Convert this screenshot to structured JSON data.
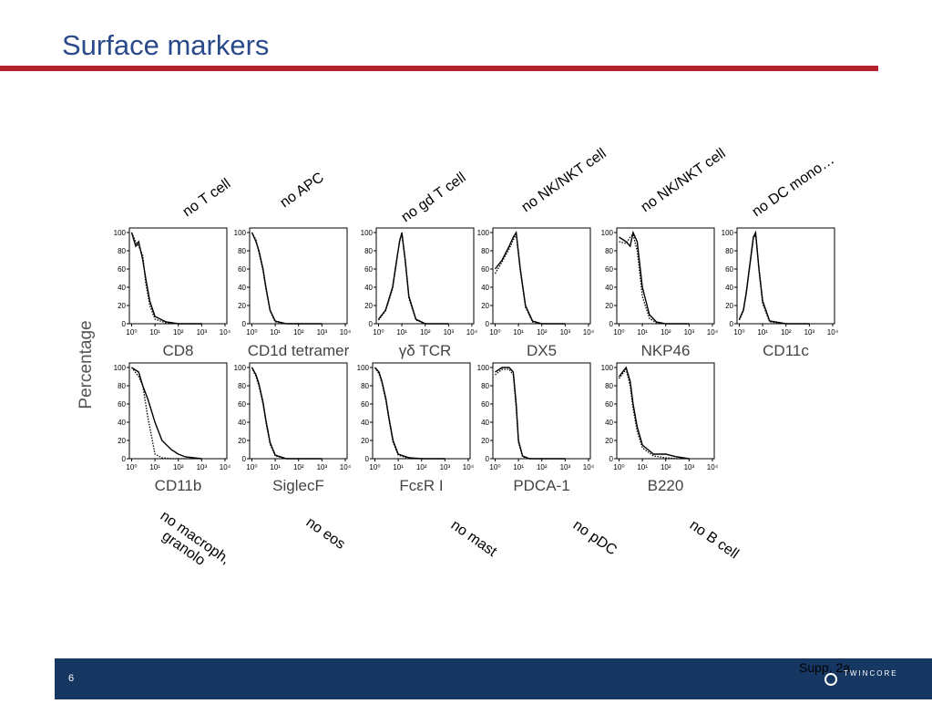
{
  "header": {
    "title": "Surface markers"
  },
  "annotations": {
    "top": [
      "no T cell",
      "no APC",
      "no gd T cell",
      "no NK/NKT cell",
      "no NK/NKT cell",
      "no DC mono…"
    ],
    "bottom": [
      [
        "no macroph,",
        "granolo"
      ],
      [
        "no eos"
      ],
      [
        "no mast"
      ],
      [
        "no pDC"
      ],
      [
        "no B cell"
      ]
    ]
  },
  "y_label": "Percentage",
  "footer": {
    "page": "6",
    "note": "Supp. 2a",
    "logo": "TWINCORE"
  },
  "chart_data": [
    {
      "type": "line",
      "xlabel": "CD8",
      "xscale": "log",
      "xlim": [
        0.8,
        12000
      ],
      "ylim": [
        0,
        105
      ],
      "yticks": [
        0,
        20,
        40,
        60,
        80,
        100
      ],
      "xticks": [
        {
          "value": 1,
          "label": "10⁰"
        },
        {
          "value": 10,
          "label": "10¹"
        },
        {
          "value": 100,
          "label": "10²"
        },
        {
          "value": 1000,
          "label": "10³"
        },
        {
          "value": 10000,
          "label": "10⁴"
        }
      ],
      "x": [
        1,
        1.5,
        2,
        3,
        4,
        6,
        10,
        30,
        100,
        1000
      ],
      "series": [
        {
          "color": "#000",
          "dash": false,
          "values": [
            100,
            85,
            90,
            70,
            50,
            25,
            8,
            2,
            0,
            0
          ]
        },
        {
          "color": "#000",
          "dash": true,
          "values": [
            100,
            90,
            85,
            75,
            45,
            20,
            5,
            1,
            0,
            0
          ]
        }
      ]
    },
    {
      "type": "line",
      "xlabel": "CD1d tetramer",
      "xscale": "log",
      "xlim": [
        0.8,
        12000
      ],
      "ylim": [
        0,
        105
      ],
      "yticks": [
        0,
        20,
        40,
        60,
        80,
        100
      ],
      "xticks": [
        {
          "value": 1,
          "label": "10⁰"
        },
        {
          "value": 10,
          "label": "10¹"
        },
        {
          "value": 100,
          "label": "10²"
        },
        {
          "value": 1000,
          "label": "10³"
        },
        {
          "value": 10000,
          "label": "10⁴"
        }
      ],
      "x": [
        1,
        1.5,
        2,
        3,
        4,
        6,
        10,
        30,
        100,
        1000
      ],
      "series": [
        {
          "color": "#000",
          "dash": false,
          "values": [
            100,
            90,
            80,
            60,
            40,
            15,
            3,
            0,
            0,
            0
          ]
        },
        {
          "color": "#000",
          "dash": true,
          "values": [
            100,
            92,
            78,
            58,
            38,
            14,
            2,
            0,
            0,
            0
          ]
        }
      ]
    },
    {
      "type": "line",
      "xlabel": "γδ TCR",
      "xscale": "log",
      "xlim": [
        0.8,
        12000
      ],
      "ylim": [
        0,
        105
      ],
      "yticks": [
        0,
        20,
        40,
        60,
        80,
        100
      ],
      "xticks": [
        {
          "value": 1,
          "label": "10⁰"
        },
        {
          "value": 10,
          "label": "10¹"
        },
        {
          "value": 100,
          "label": "10²"
        },
        {
          "value": 1000,
          "label": "10³"
        },
        {
          "value": 10000,
          "label": "10⁴"
        }
      ],
      "x": [
        1,
        2,
        4,
        6,
        8,
        10,
        14,
        20,
        40,
        100,
        1000
      ],
      "series": [
        {
          "color": "#000",
          "dash": false,
          "values": [
            5,
            15,
            40,
            70,
            90,
            100,
            70,
            30,
            5,
            0,
            0
          ]
        },
        {
          "color": "#000",
          "dash": true,
          "values": [
            4,
            14,
            38,
            68,
            92,
            98,
            68,
            28,
            4,
            0,
            0
          ]
        }
      ]
    },
    {
      "type": "line",
      "xlabel": "DX5",
      "xscale": "log",
      "xlim": [
        0.8,
        12000
      ],
      "ylim": [
        0,
        105
      ],
      "yticks": [
        0,
        20,
        40,
        60,
        80,
        100
      ],
      "xticks": [
        {
          "value": 1,
          "label": "10⁰"
        },
        {
          "value": 10,
          "label": "10¹"
        },
        {
          "value": 100,
          "label": "10²"
        },
        {
          "value": 1000,
          "label": "10³"
        },
        {
          "value": 10000,
          "label": "10⁴"
        }
      ],
      "x": [
        1,
        2,
        4,
        6,
        8,
        12,
        20,
        40,
        100,
        1000
      ],
      "series": [
        {
          "color": "#000",
          "dash": false,
          "values": [
            60,
            70,
            85,
            95,
            100,
            60,
            20,
            3,
            0,
            0
          ]
        },
        {
          "color": "#000",
          "dash": true,
          "values": [
            55,
            68,
            82,
            92,
            98,
            58,
            18,
            2,
            0,
            0
          ]
        }
      ]
    },
    {
      "type": "line",
      "xlabel": "NKP46",
      "xscale": "log",
      "xlim": [
        0.8,
        12000
      ],
      "ylim": [
        0,
        105
      ],
      "yticks": [
        0,
        20,
        40,
        60,
        80,
        100
      ],
      "xticks": [
        {
          "value": 1,
          "label": "10⁰"
        },
        {
          "value": 10,
          "label": "10¹"
        },
        {
          "value": 100,
          "label": "10²"
        },
        {
          "value": 1000,
          "label": "10³"
        },
        {
          "value": 10000,
          "label": "10⁴"
        }
      ],
      "x": [
        1,
        2,
        3,
        4,
        6,
        10,
        20,
        40,
        100,
        1000
      ],
      "series": [
        {
          "color": "#000",
          "dash": false,
          "values": [
            95,
            90,
            85,
            100,
            90,
            40,
            10,
            2,
            0,
            0
          ]
        },
        {
          "color": "#000",
          "dash": true,
          "values": [
            90,
            88,
            95,
            98,
            80,
            30,
            6,
            1,
            0,
            0
          ]
        }
      ]
    },
    {
      "type": "line",
      "xlabel": "CD11c",
      "xscale": "log",
      "xlim": [
        0.8,
        12000
      ],
      "ylim": [
        0,
        105
      ],
      "yticks": [
        0,
        20,
        40,
        60,
        80,
        100
      ],
      "xticks": [
        {
          "value": 1,
          "label": "10⁰"
        },
        {
          "value": 10,
          "label": "10¹"
        },
        {
          "value": 100,
          "label": "10²"
        },
        {
          "value": 1000,
          "label": "10³"
        },
        {
          "value": 10000,
          "label": "10⁴"
        }
      ],
      "x": [
        1,
        1.5,
        2,
        3,
        4,
        5,
        7,
        10,
        20,
        100,
        1000
      ],
      "series": [
        {
          "color": "#000",
          "dash": false,
          "values": [
            5,
            15,
            35,
            70,
            95,
            100,
            60,
            25,
            3,
            0,
            0
          ]
        },
        {
          "color": "#000",
          "dash": true,
          "values": [
            4,
            14,
            33,
            68,
            93,
            98,
            58,
            22,
            2,
            0,
            0
          ]
        }
      ]
    },
    {
      "type": "line",
      "xlabel": "CD11b",
      "xscale": "log",
      "xlim": [
        0.8,
        12000
      ],
      "ylim": [
        0,
        105
      ],
      "yticks": [
        0,
        20,
        40,
        60,
        80,
        100
      ],
      "xticks": [
        {
          "value": 1,
          "label": "10⁰"
        },
        {
          "value": 10,
          "label": "10¹"
        },
        {
          "value": 100,
          "label": "10²"
        },
        {
          "value": 1000,
          "label": "10³"
        },
        {
          "value": 10000,
          "label": "10⁴"
        }
      ],
      "x": [
        1,
        2,
        3,
        5,
        10,
        20,
        50,
        100,
        200,
        1000
      ],
      "series": [
        {
          "color": "#000",
          "dash": false,
          "values": [
            100,
            95,
            80,
            65,
            40,
            20,
            10,
            5,
            2,
            0
          ]
        },
        {
          "color": "#000",
          "dash": true,
          "values": [
            100,
            90,
            80,
            45,
            5,
            1,
            0,
            0,
            0,
            0
          ]
        }
      ]
    },
    {
      "type": "line",
      "xlabel": "SiglecF",
      "xscale": "log",
      "xlim": [
        0.8,
        12000
      ],
      "ylim": [
        0,
        105
      ],
      "yticks": [
        0,
        20,
        40,
        60,
        80,
        100
      ],
      "xticks": [
        {
          "value": 1,
          "label": "10⁰"
        },
        {
          "value": 10,
          "label": "10¹"
        },
        {
          "value": 100,
          "label": "10²"
        },
        {
          "value": 1000,
          "label": "10³"
        },
        {
          "value": 10000,
          "label": "10⁴"
        }
      ],
      "x": [
        1,
        1.5,
        2,
        3,
        4,
        6,
        10,
        30,
        100,
        1000
      ],
      "series": [
        {
          "color": "#000",
          "dash": false,
          "values": [
            100,
            92,
            82,
            62,
            42,
            18,
            4,
            0,
            0,
            0
          ]
        },
        {
          "color": "#000",
          "dash": true,
          "values": [
            100,
            90,
            80,
            60,
            40,
            16,
            3,
            0,
            0,
            0
          ]
        }
      ]
    },
    {
      "type": "line",
      "xlabel": "FcεR I",
      "xscale": "log",
      "xlim": [
        0.8,
        12000
      ],
      "ylim": [
        0,
        105
      ],
      "yticks": [
        0,
        20,
        40,
        60,
        80,
        100
      ],
      "xticks": [
        {
          "value": 1,
          "label": "10⁰"
        },
        {
          "value": 10,
          "label": "10¹"
        },
        {
          "value": 100,
          "label": "10²"
        },
        {
          "value": 1000,
          "label": "10³"
        },
        {
          "value": 10000,
          "label": "10⁴"
        }
      ],
      "x": [
        1,
        1.5,
        2,
        3,
        4,
        6,
        10,
        30,
        100,
        1000
      ],
      "series": [
        {
          "color": "#000",
          "dash": false,
          "values": [
            100,
            95,
            85,
            65,
            45,
            20,
            5,
            1,
            0,
            0
          ]
        },
        {
          "color": "#000",
          "dash": true,
          "values": [
            100,
            93,
            83,
            63,
            43,
            18,
            4,
            0,
            0,
            0
          ]
        }
      ]
    },
    {
      "type": "line",
      "xlabel": "PDCA-1",
      "xscale": "log",
      "xlim": [
        0.8,
        12000
      ],
      "ylim": [
        0,
        105
      ],
      "yticks": [
        0,
        20,
        40,
        60,
        80,
        100
      ],
      "xticks": [
        {
          "value": 1,
          "label": "10⁰"
        },
        {
          "value": 10,
          "label": "10¹"
        },
        {
          "value": 100,
          "label": "10²"
        },
        {
          "value": 1000,
          "label": "10³"
        },
        {
          "value": 10000,
          "label": "10⁴"
        }
      ],
      "x": [
        1,
        2,
        4,
        6,
        8,
        10,
        15,
        30,
        100,
        1000
      ],
      "series": [
        {
          "color": "#000",
          "dash": false,
          "values": [
            95,
            100,
            100,
            95,
            60,
            20,
            3,
            0,
            0,
            0
          ]
        },
        {
          "color": "#000",
          "dash": true,
          "values": [
            92,
            98,
            98,
            92,
            55,
            18,
            2,
            0,
            0,
            0
          ]
        }
      ]
    },
    {
      "type": "line",
      "xlabel": "B220",
      "xscale": "log",
      "xlim": [
        0.8,
        12000
      ],
      "ylim": [
        0,
        105
      ],
      "yticks": [
        0,
        20,
        40,
        60,
        80,
        100
      ],
      "xticks": [
        {
          "value": 1,
          "label": "10⁰"
        },
        {
          "value": 10,
          "label": "10¹"
        },
        {
          "value": 100,
          "label": "10²"
        },
        {
          "value": 1000,
          "label": "10³"
        },
        {
          "value": 10000,
          "label": "10⁴"
        }
      ],
      "x": [
        1,
        2,
        3,
        4,
        6,
        10,
        30,
        100,
        300,
        1000
      ],
      "series": [
        {
          "color": "#000",
          "dash": false,
          "values": [
            90,
            100,
            85,
            60,
            35,
            15,
            5,
            5,
            2,
            0
          ]
        },
        {
          "color": "#000",
          "dash": true,
          "values": [
            88,
            98,
            80,
            55,
            30,
            12,
            3,
            1,
            0,
            0
          ]
        }
      ]
    }
  ]
}
